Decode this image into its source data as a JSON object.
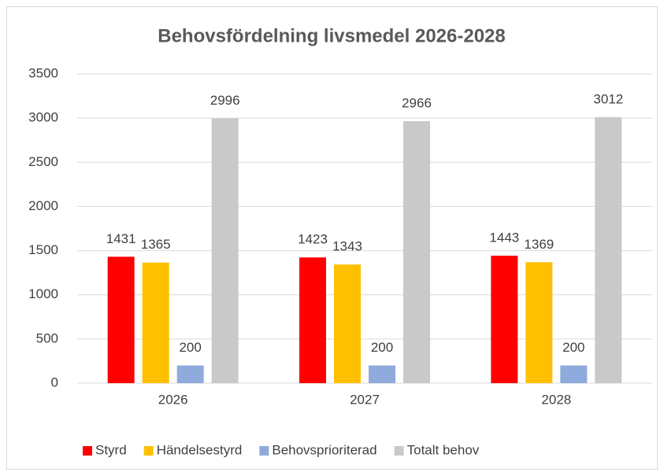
{
  "chart_data": {
    "type": "bar",
    "title": "Behovsfördelning livsmedel 2026-2028",
    "categories": [
      "2026",
      "2027",
      "2028"
    ],
    "series": [
      {
        "name": "Styrd",
        "color": "#ff0000",
        "values": [
          1431,
          1423,
          1443
        ]
      },
      {
        "name": "Händelsestyrd",
        "color": "#ffc000",
        "values": [
          1365,
          1343,
          1369
        ]
      },
      {
        "name": "Behovsprioriterad",
        "color": "#8faadc",
        "values": [
          200,
          200,
          200
        ]
      },
      {
        "name": "Totalt behov",
        "color": "#c9c9c9",
        "values": [
          2996,
          2966,
          3012
        ]
      }
    ],
    "ylim": [
      0,
      3500
    ],
    "yticks": [
      0,
      500,
      1000,
      1500,
      2000,
      2500,
      3000,
      3500
    ],
    "grid": true,
    "legend": "bottom"
  }
}
